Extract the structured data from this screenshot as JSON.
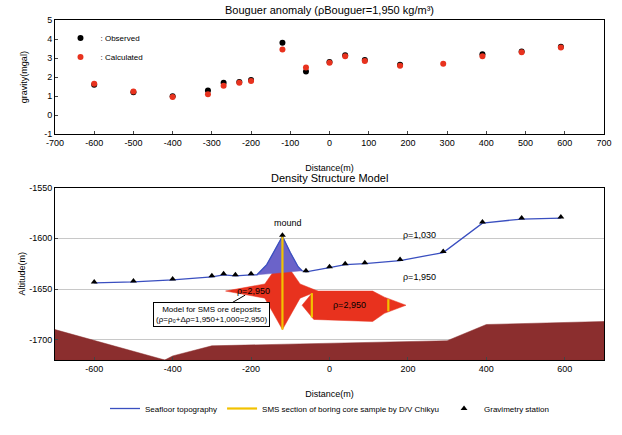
{
  "chart_data": [
    {
      "type": "scatter",
      "title": "Bouguer anomaly (ρBouguer=1,950 kg/m³)",
      "xlabel": "Distance(m)",
      "ylabel": "gravity(mgal)",
      "xlim": [
        -700,
        700
      ],
      "xticks": [
        -700,
        -600,
        -500,
        -400,
        -300,
        -200,
        -100,
        0,
        100,
        200,
        300,
        400,
        500,
        600,
        700
      ],
      "ylim": [
        -1,
        5
      ],
      "yticks": [
        -1,
        0,
        1,
        2,
        3,
        4,
        5
      ],
      "grid": false,
      "legend": "upper left",
      "series": [
        {
          "name": ": Observed",
          "color": "#000000",
          "marker": "circle",
          "x": [
            -600,
            -500,
            -400,
            -310,
            -270,
            -230,
            -200,
            -120,
            -60,
            0,
            40,
            90,
            180,
            390,
            490,
            590
          ],
          "y": [
            1.6,
            1.2,
            1.0,
            1.3,
            1.7,
            1.75,
            1.85,
            3.8,
            2.3,
            2.8,
            3.15,
            2.9,
            2.65,
            3.2,
            3.35,
            3.6
          ]
        },
        {
          "name": ": Calculated",
          "color": "#e8321e",
          "marker": "circle",
          "x": [
            -600,
            -500,
            -400,
            -310,
            -270,
            -230,
            -200,
            -120,
            -60,
            0,
            40,
            90,
            180,
            290,
            390,
            490,
            590
          ],
          "y": [
            1.65,
            1.25,
            0.95,
            1.1,
            1.55,
            1.7,
            1.8,
            3.45,
            2.5,
            2.75,
            3.1,
            2.85,
            2.6,
            2.7,
            3.1,
            3.3,
            3.55
          ]
        }
      ]
    },
    {
      "type": "line",
      "title": "Density Structure Model",
      "xlabel": "Distance(m)",
      "ylabel": "Altitude(m)",
      "xlim": [
        -700,
        700
      ],
      "xticks": [
        -600,
        -400,
        -200,
        0,
        200,
        400,
        600
      ],
      "ylim": [
        -1720,
        -1550
      ],
      "yticks": [
        -1700,
        -1650,
        -1600,
        -1550
      ],
      "grid": true,
      "legend": "bottom",
      "bodies": [
        {
          "color": "#8b2e2e",
          "x": [
            -700,
            -420,
            -400,
            -300,
            300,
            400,
            700,
            700,
            -700
          ],
          "y": [
            -1690,
            -1720,
            -1716,
            -1706,
            -1701,
            -1685,
            -1682,
            -1720,
            -1720
          ]
        },
        {
          "color": "#e8321e",
          "x": [
            -265,
            -165,
            -120,
            -75,
            -30,
            -75,
            -120,
            -165,
            -265
          ],
          "y": [
            -1652,
            -1645,
            -1620,
            -1645,
            -1652,
            -1659,
            -1690,
            -1659,
            -1652
          ]
        },
        {
          "color": "#e8321e",
          "x": [
            -70,
            -40,
            110,
            140,
            195,
            140,
            110,
            -40,
            -70
          ],
          "y": [
            -1666,
            -1652,
            -1652,
            -1658,
            -1666,
            -1674,
            -1682,
            -1680,
            -1666
          ]
        },
        {
          "color": "#6b63c9",
          "x": [
            -185,
            -160,
            -140,
            -120,
            -100,
            -80,
            -70,
            -185
          ],
          "y": [
            -1636,
            -1626,
            -1612,
            -1598,
            -1614,
            -1628,
            -1632,
            -1636
          ]
        }
      ],
      "series": [
        {
          "name": "Seafloor topography",
          "type": "line",
          "color": "#3a4fc0",
          "line_style": "solid",
          "x": [
            -600,
            -500,
            -400,
            -300,
            -270,
            -240,
            -200,
            -185,
            -160,
            -140,
            -120,
            -100,
            -80,
            -70,
            -60,
            0,
            40,
            90,
            180,
            290,
            390,
            490,
            590
          ],
          "y": [
            -1644,
            -1643,
            -1641,
            -1638,
            -1636,
            -1637,
            -1636,
            -1636,
            -1626,
            -1612,
            -1598,
            -1614,
            -1628,
            -1632,
            -1633,
            -1629,
            -1626,
            -1625,
            -1622,
            -1614,
            -1585,
            -1581,
            -1580
          ]
        },
        {
          "name": "SMS section of boring core sample by D/V Chikyu",
          "type": "line",
          "color": "#f2c200",
          "line_style": "solid",
          "x": [
            -120,
            -120,
            null,
            -45,
            -45,
            null,
            150,
            150
          ],
          "y": [
            -1598,
            -1690,
            null,
            -1654,
            -1678,
            null,
            -1660,
            -1672
          ]
        },
        {
          "name": "Gravimetry station",
          "type": "scatter",
          "color": "#000000",
          "marker": "triangle-up",
          "x": [
            -600,
            -500,
            -400,
            -300,
            -270,
            -240,
            -200,
            -120,
            -60,
            0,
            40,
            90,
            180,
            290,
            390,
            490,
            590
          ],
          "y": [
            -1643,
            -1642,
            -1640,
            -1637,
            -1635,
            -1636,
            -1635,
            -1597,
            -1632,
            -1628,
            -1625,
            -1624,
            -1621,
            -1613,
            -1584,
            -1580,
            -1579
          ]
        }
      ],
      "annotations": [
        {
          "text": "mound",
          "x": -105,
          "y": -1585
        },
        {
          "text": "ρ=1,030",
          "x": 230,
          "y": -1597
        },
        {
          "text": "ρ=1,950",
          "x": 230,
          "y": -1638
        },
        {
          "text": "ρ=2,950",
          "x": -195,
          "y": -1652
        },
        {
          "text": "ρ=2,950",
          "x": 50,
          "y": -1666
        }
      ],
      "callout": {
        "lines": [
          "Model for SMS ore deposits",
          "(ρ=ρ₀+Δρ=1,950+1,000=2,950)"
        ],
        "x": -300,
        "y": -1675,
        "arrow_x": -215,
        "arrow_y": -1656
      }
    }
  ]
}
